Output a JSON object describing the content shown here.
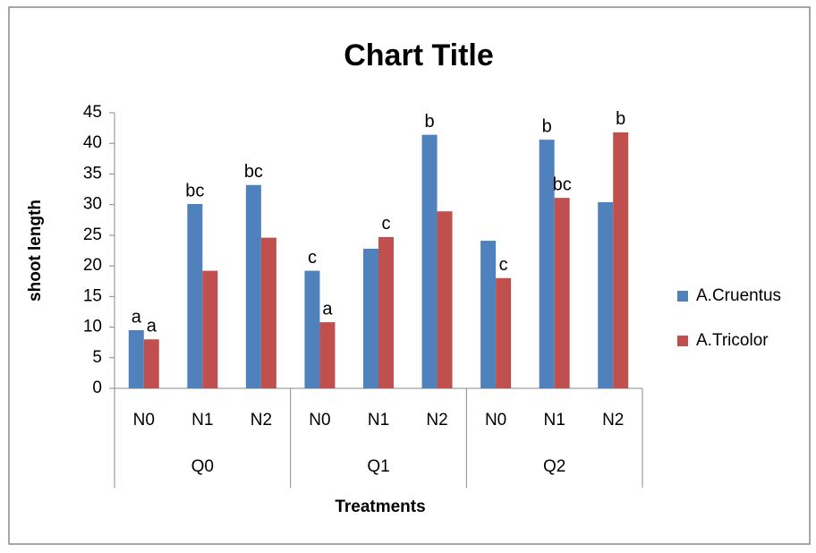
{
  "chart_data": {
    "type": "bar",
    "title": "Chart Title",
    "x_label": "Treatments",
    "y_label": "shoot length",
    "categories": [
      "N0",
      "N1",
      "N2",
      "N0",
      "N1",
      "N2",
      "N0",
      "N1",
      "N2"
    ],
    "groups": [
      "Q0",
      "Q1",
      "Q2"
    ],
    "series": [
      {
        "name": "A.Cruentus",
        "color": "#4f81bd",
        "values": [
          9.5,
          30.1,
          33.2,
          19.2,
          22.8,
          41.4,
          24.1,
          40.6,
          30.4
        ]
      },
      {
        "name": "A.Tricolor",
        "color": "#c0504d",
        "values": [
          8.0,
          19.2,
          24.6,
          10.8,
          24.7,
          28.9,
          18.0,
          31.1,
          41.8
        ]
      }
    ],
    "annotations": [
      {
        "text": "a",
        "series": 0,
        "index": 0
      },
      {
        "text": "a",
        "series": 1,
        "index": 0
      },
      {
        "text": "bc",
        "series": 0,
        "index": 1
      },
      {
        "text": "bc",
        "series": 0,
        "index": 2
      },
      {
        "text": "c",
        "series": 0,
        "index": 3
      },
      {
        "text": "a",
        "series": 1,
        "index": 3
      },
      {
        "text": "c",
        "series": 1,
        "index": 4
      },
      {
        "text": "b",
        "series": 0,
        "index": 5
      },
      {
        "text": "c",
        "series": 1,
        "index": 6
      },
      {
        "text": "b",
        "series": 0,
        "index": 7
      },
      {
        "text": "bc",
        "series": 1,
        "index": 7
      },
      {
        "text": "b",
        "series": 1,
        "index": 8
      }
    ],
    "ylim": [
      0,
      45
    ],
    "yticks": [
      0,
      5,
      10,
      15,
      20,
      25,
      30,
      35,
      40,
      45
    ],
    "legend": "right"
  }
}
